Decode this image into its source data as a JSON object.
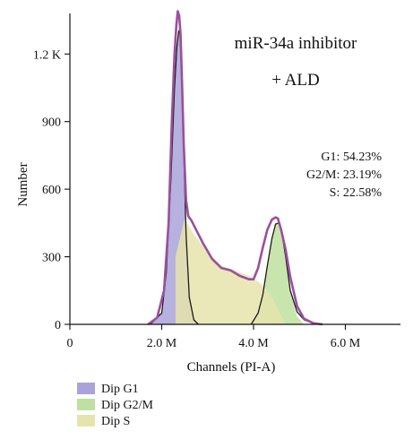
{
  "chart_data": {
    "type": "area",
    "title": [
      "miR-34a inhibitor",
      "+ ALD"
    ],
    "xlabel": "Channels (PI-A)",
    "ylabel": "Number",
    "xlim": [
      0,
      7.2
    ],
    "ylim": [
      0,
      1380
    ],
    "x_unit": "M",
    "y_unit": "count",
    "x_ticks": [
      0,
      2,
      4,
      6
    ],
    "x_tick_labels": [
      "0",
      "2.0 M",
      "4.0 M",
      "6.0 M"
    ],
    "y_ticks": [
      0,
      300,
      600,
      900,
      1200
    ],
    "y_tick_labels": [
      "0",
      "300",
      "600",
      "900",
      "1.2 K"
    ],
    "grid": false,
    "legend_position": "bottom-left",
    "annotations": [
      "G1: 54.23%",
      "G2/M: 23.19%",
      "S: 22.58%"
    ],
    "series": [
      {
        "name": "Dip G1",
        "role": "fill",
        "color": "#a9a3d9",
        "x": [
          1.75,
          2.0,
          2.1,
          2.2,
          2.28,
          2.33,
          2.37,
          2.4,
          2.43,
          2.47,
          2.53,
          2.6,
          2.7,
          2.8
        ],
        "y": [
          0,
          50,
          230,
          650,
          1050,
          1230,
          1300,
          1290,
          1150,
          850,
          400,
          120,
          20,
          0
        ]
      },
      {
        "name": "Dip G2/M",
        "role": "fill",
        "color": "#bfe0a0",
        "x": [
          3.95,
          4.1,
          4.2,
          4.3,
          4.4,
          4.48,
          4.55,
          4.62,
          4.7,
          4.8,
          4.95,
          5.1
        ],
        "y": [
          0,
          50,
          130,
          260,
          380,
          445,
          450,
          400,
          300,
          150,
          35,
          0
        ]
      },
      {
        "name": "Dip S",
        "role": "fill",
        "color": "#e6e4ad",
        "x": [
          2.3,
          2.5,
          2.7,
          3.0,
          3.3,
          3.6,
          3.9,
          4.1,
          4.25,
          4.4,
          4.55,
          4.7
        ],
        "y": [
          300,
          470,
          400,
          320,
          260,
          240,
          215,
          190,
          165,
          120,
          60,
          0
        ]
      },
      {
        "role": "envelope",
        "color": "#9b4f9c",
        "x": [
          1.7,
          1.9,
          2.05,
          2.15,
          2.22,
          2.28,
          2.32,
          2.35,
          2.38,
          2.41,
          2.44,
          2.48,
          2.53,
          2.58,
          2.65,
          2.75,
          2.9,
          3.1,
          3.3,
          3.5,
          3.7,
          3.9,
          4.0,
          4.1,
          4.2,
          4.3,
          4.4,
          4.48,
          4.53,
          4.6,
          4.7,
          4.8,
          4.95,
          5.1,
          5.3,
          5.5
        ],
        "y": [
          0,
          30,
          150,
          450,
          900,
          1200,
          1330,
          1390,
          1370,
          1290,
          1100,
          800,
          550,
          480,
          460,
          420,
          360,
          290,
          250,
          240,
          215,
          200,
          200,
          250,
          340,
          420,
          465,
          475,
          470,
          420,
          330,
          210,
          80,
          25,
          5,
          0
        ]
      },
      {
        "role": "fit-outline",
        "color": "#1a1a1a",
        "x": [
          1.75,
          2.0,
          2.1,
          2.2,
          2.28,
          2.33,
          2.37,
          2.4,
          2.43,
          2.47,
          2.53,
          2.6,
          2.7,
          2.8
        ],
        "y": [
          0,
          50,
          230,
          650,
          1050,
          1230,
          1300,
          1290,
          1150,
          850,
          400,
          120,
          20,
          0
        ]
      },
      {
        "role": "fit-outline",
        "color": "#1a1a1a",
        "x": [
          3.95,
          4.1,
          4.2,
          4.3,
          4.4,
          4.48,
          4.55,
          4.62,
          4.7,
          4.8,
          4.95,
          5.1,
          5.3,
          5.5
        ],
        "y": [
          0,
          50,
          130,
          260,
          380,
          445,
          450,
          400,
          300,
          150,
          55,
          20,
          5,
          0
        ]
      }
    ],
    "legend": [
      {
        "label": "Dip G1",
        "color": "#a9a3d9"
      },
      {
        "label": "Dip G2/M",
        "color": "#bfe0a0"
      },
      {
        "label": "Dip S",
        "color": "#e6e4ad"
      }
    ]
  }
}
